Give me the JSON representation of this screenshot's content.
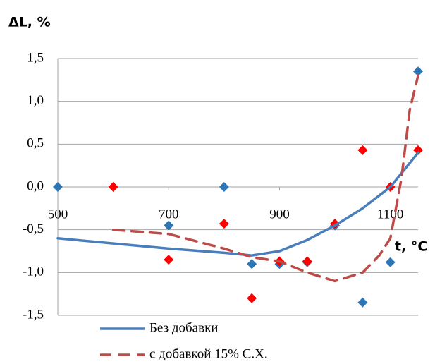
{
  "chart_data": {
    "type": "scatter-line",
    "y_label": "ΔL, %",
    "x_label": "t, °C",
    "xlim": [
      500,
      1150
    ],
    "xticks": [
      500,
      700,
      900,
      1100
    ],
    "ylim": [
      -1.5,
      1.5
    ],
    "yticks": [
      {
        "value": -1.5,
        "label": "-1,5"
      },
      {
        "value": -1,
        "label": "-1,0"
      },
      {
        "value": -0.5,
        "label": "-0,5"
      },
      {
        "value": 0,
        "label": "0,0"
      },
      {
        "value": 0.5,
        "label": "0,5"
      },
      {
        "value": 1,
        "label": "1,0"
      },
      {
        "value": 1.5,
        "label": "1,5"
      }
    ],
    "grid": true,
    "series": [
      {
        "color": "#2e75b6",
        "style": "points",
        "x": [
          500,
          700,
          800,
          850,
          900,
          950,
          1000,
          1050,
          1100,
          1150
        ],
        "values": [
          0,
          -0.45,
          0,
          -0.9,
          -0.9,
          -0.88,
          -0.45,
          -1.35,
          -0.88,
          1.35
        ]
      },
      {
        "color": "#ff0000",
        "style": "points",
        "x": [
          600,
          700,
          800,
          850,
          900,
          950,
          1000,
          1050,
          1100,
          1150
        ],
        "values": [
          0,
          -0.85,
          -0.43,
          -1.3,
          -0.87,
          -0.87,
          -0.43,
          0.43,
          0,
          0.43
        ]
      },
      {
        "name": "Без добавки",
        "color": "#4a7ebb",
        "style": "solid",
        "x": [
          500,
          600,
          700,
          800,
          850,
          900,
          950,
          1000,
          1050,
          1100,
          1150
        ],
        "values": [
          -0.6,
          -0.66,
          -0.72,
          -0.77,
          -0.8,
          -0.75,
          -0.62,
          -0.45,
          -0.25,
          0,
          0.4
        ]
      },
      {
        "name": "с добавкой 15% С.Х.",
        "color": "#be4b48",
        "style": "dashed",
        "x": [
          600,
          700,
          800,
          850,
          900,
          950,
          1000,
          1050,
          1080,
          1100,
          1120,
          1135,
          1150
        ],
        "values": [
          -0.5,
          -0.55,
          -0.72,
          -0.82,
          -0.87,
          -1.0,
          -1.1,
          -1.0,
          -0.8,
          -0.6,
          0.1,
          0.9,
          1.3
        ]
      }
    ]
  }
}
